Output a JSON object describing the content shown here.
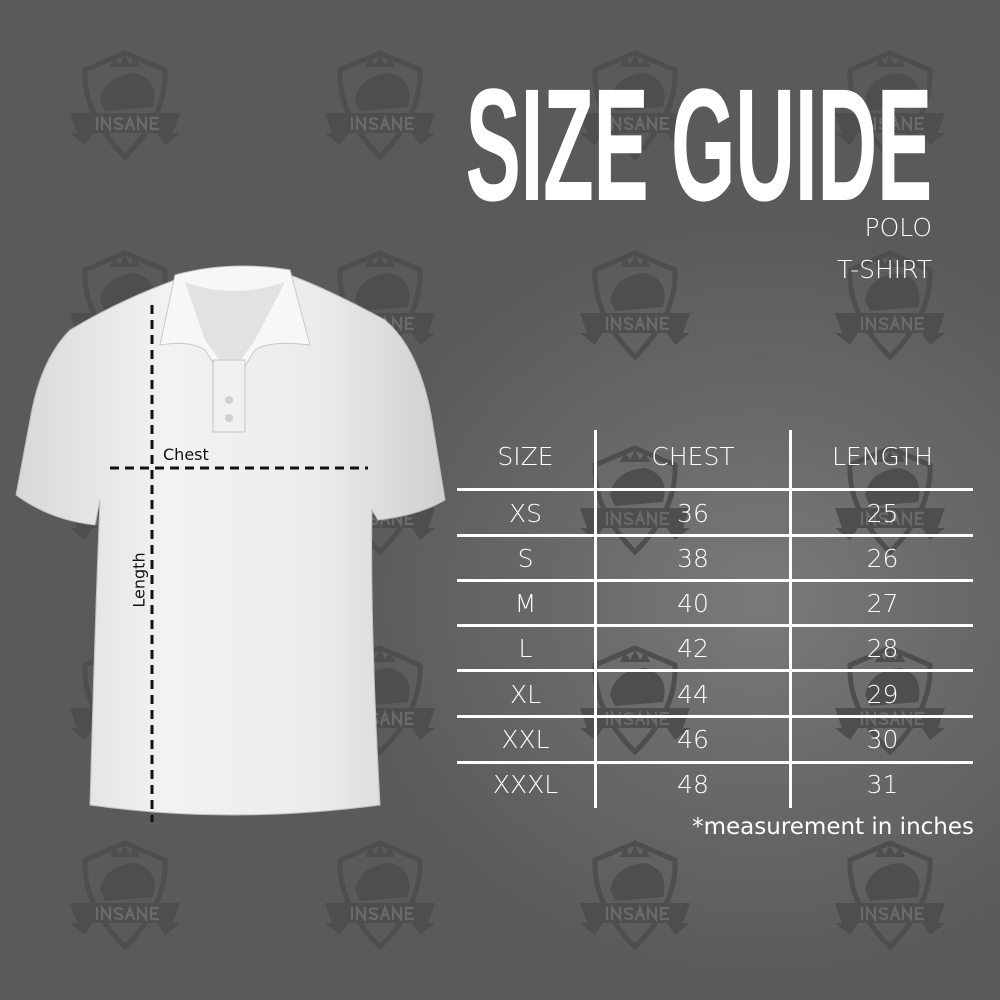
{
  "watermark": {
    "text": "INSANE",
    "icon": "lion-shield-logo"
  },
  "header": {
    "title": "SIZE GUIDE",
    "subtitle_lines": [
      "POLO",
      "T-SHIRT"
    ]
  },
  "diagram": {
    "chest_label": "Chest",
    "length_label": "Length"
  },
  "size_table": {
    "columns": [
      "SIZE",
      "CHEST",
      "LENGTH"
    ],
    "rows": [
      {
        "size": "XS",
        "chest": "36",
        "length": "25"
      },
      {
        "size": "S",
        "chest": "38",
        "length": "26"
      },
      {
        "size": "M",
        "chest": "40",
        "length": "27"
      },
      {
        "size": "L",
        "chest": "42",
        "length": "28"
      },
      {
        "size": "XL",
        "chest": "44",
        "length": "29"
      },
      {
        "size": "XXL",
        "chest": "46",
        "length": "30"
      },
      {
        "size": "XXXL",
        "chest": "48",
        "length": "31"
      }
    ]
  },
  "note": "*measurement in inches"
}
